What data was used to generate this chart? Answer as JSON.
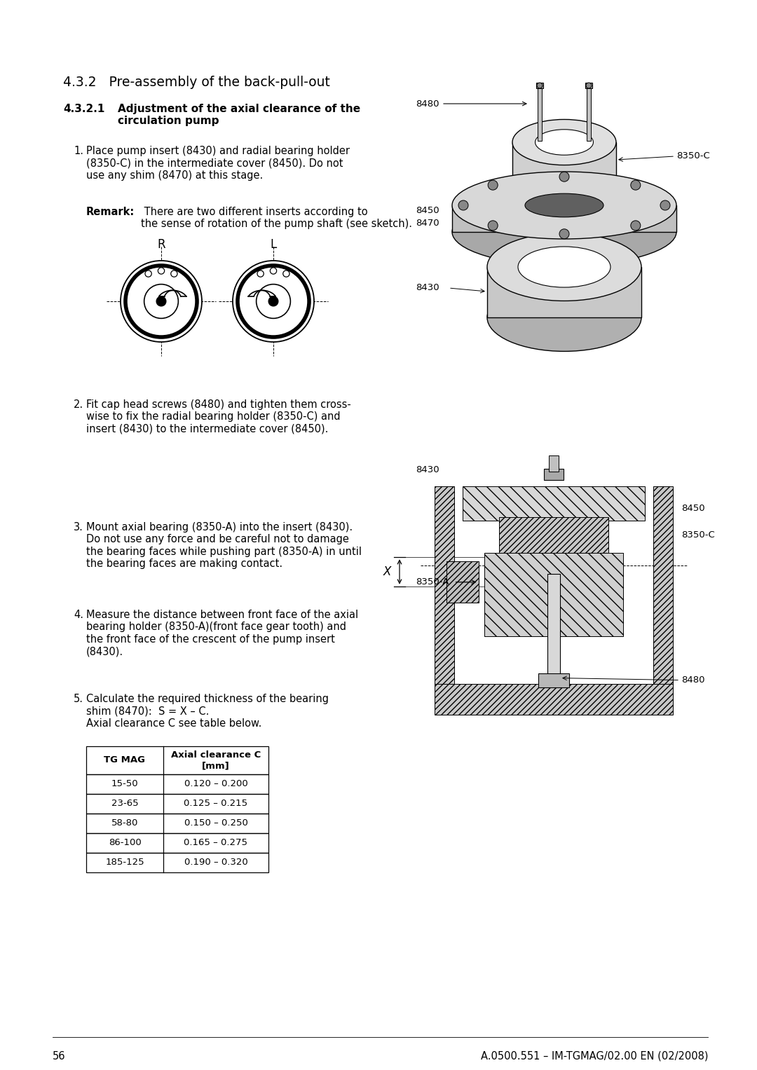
{
  "page_number": "56",
  "footer_text": "A.0500.551 – IM-TGMAG/02.00 EN (02/2008)",
  "section_title": "4.3.2   Pre-assembly of the back-pull-out",
  "subsection_number": "4.3.2.1",
  "subsection_title": "Adjustment of the axial clearance of the\ncirculation pump",
  "step1_num": "1.",
  "step1": "Place pump insert (8430) and radial bearing holder\n(8350-C) in the intermediate cover (8450). Do not\nuse any shim (8470) at this stage.",
  "remark_bold": "Remark:",
  "remark_text": " There are two different inserts according to\nthe sense of rotation of the pump shaft (see sketch).",
  "step2_num": "2.",
  "step2": "Fit cap head screws (8480) and tighten them cross-\nwise to fix the radial bearing holder (8350-C) and\ninsert (8430) to the intermediate cover (8450).",
  "step3_num": "3.",
  "step3": "Mount axial bearing (8350-A) into the insert (8430).\nDo not use any force and be careful not to damage\nthe bearing faces while pushing part (8350-A) in until\nthe bearing faces are making contact.",
  "step4_num": "4.",
  "step4": "Measure the distance between front face of the axial\nbearing holder (8350-A)(front face gear tooth) and\nthe front face of the crescent of the pump insert\n(8430).",
  "step5_num": "5.",
  "step5": "Calculate the required thickness of the bearing\nshim (8470):  S = X – C.\nAxial clearance C see table below.",
  "table_headers": [
    "TG MAG",
    "Axial clearance C\n[mm]"
  ],
  "table_rows": [
    [
      "15-50",
      "0.120 – 0.200"
    ],
    [
      "23-65",
      "0.125 – 0.215"
    ],
    [
      "58-80",
      "0.150 – 0.250"
    ],
    [
      "86-100",
      "0.165 – 0.275"
    ],
    [
      "185-125",
      "0.190 – 0.320"
    ]
  ],
  "bg_color": "#ffffff",
  "text_color": "#000000",
  "lbl_8480": "8480",
  "lbl_8350C": "8350-C",
  "lbl_8450": "8450",
  "lbl_8470": "8470",
  "lbl_8430": "8430",
  "lbl_8350A": "8350-A",
  "lbl_X": "X",
  "font_size_body": 10.5,
  "font_size_small": 9.5,
  "font_size_section": 13.5,
  "font_size_subsection": 11.0,
  "font_size_label": 9.5
}
